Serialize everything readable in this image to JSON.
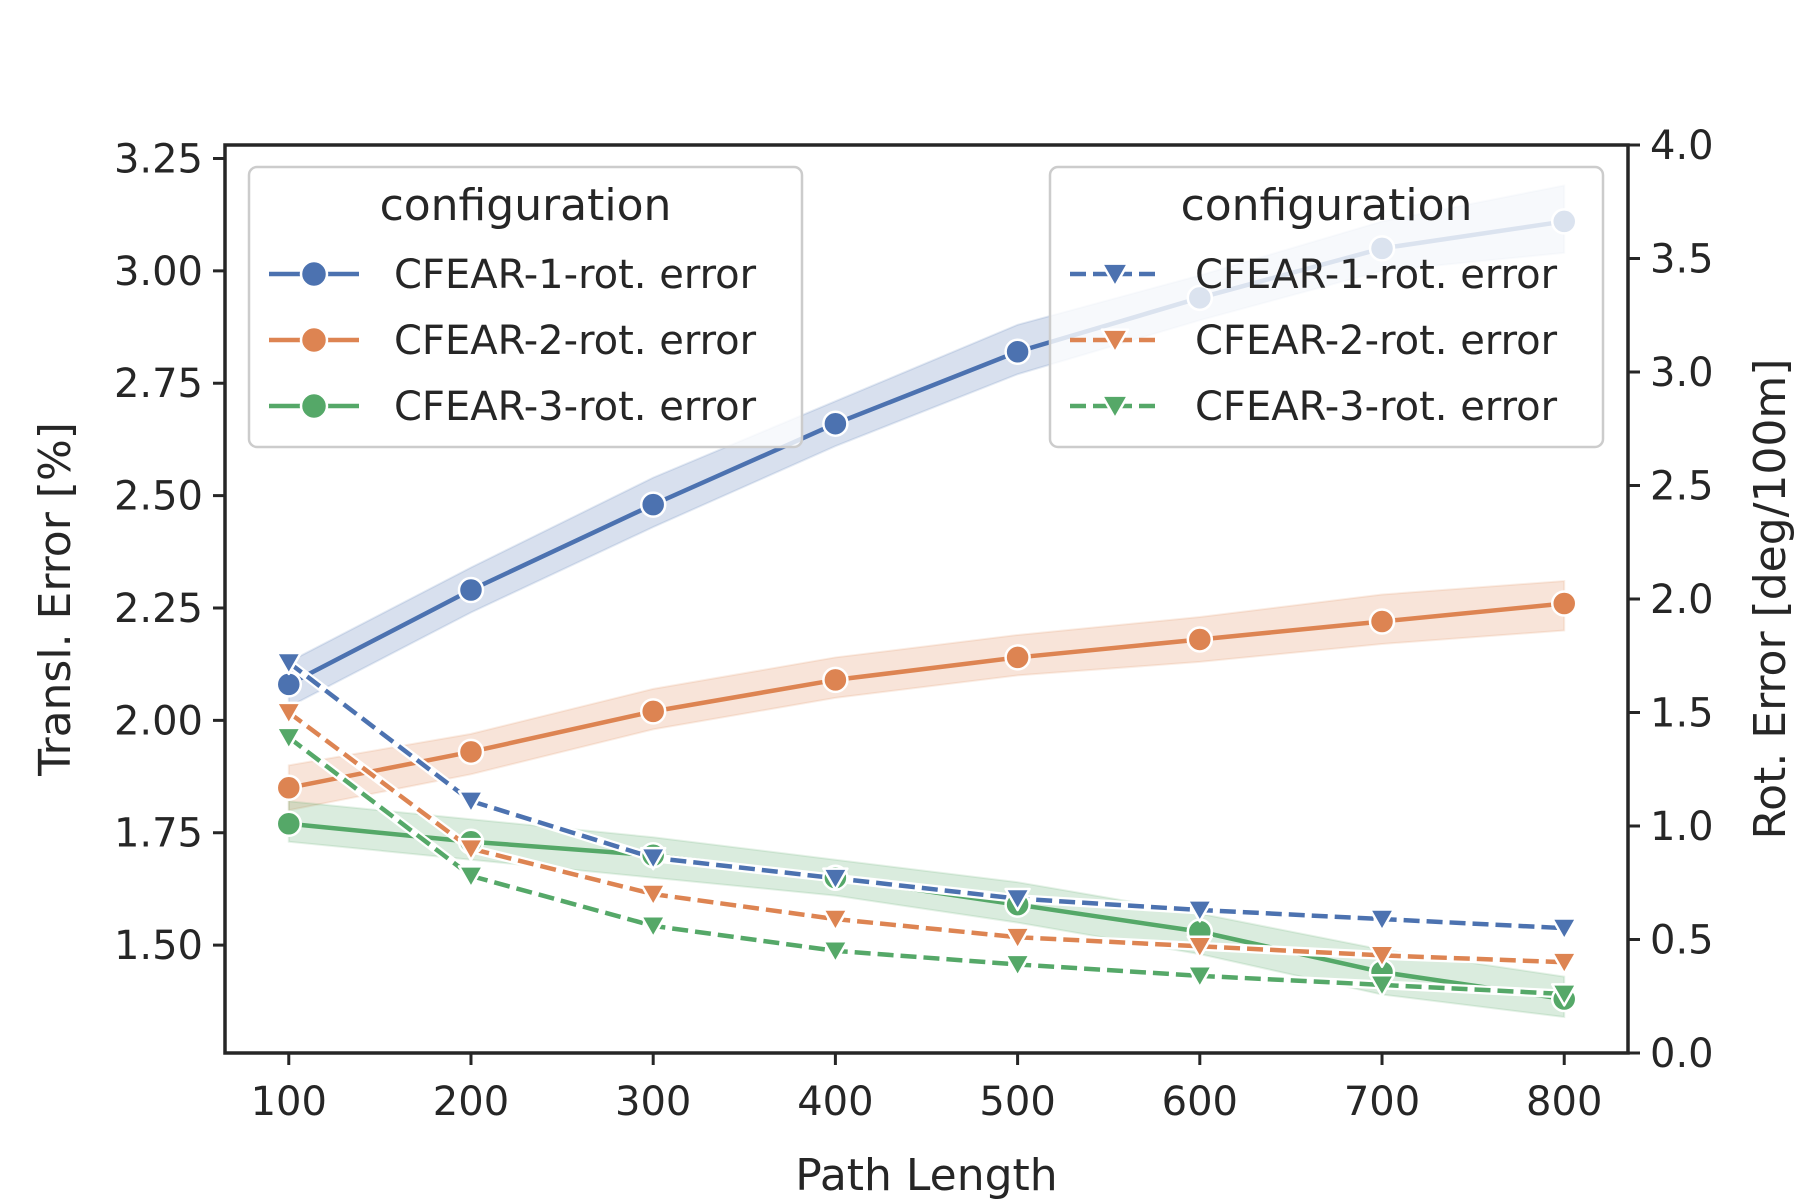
{
  "chart_data": {
    "type": "line",
    "xlabel": "Path Length",
    "ylabel_left": "Transl. Error [%]",
    "ylabel_right": "Rot. Error [deg/100m]",
    "x": [
      100,
      200,
      300,
      400,
      500,
      600,
      700,
      800
    ],
    "x_ticks": [
      "100",
      "200",
      "300",
      "400",
      "500",
      "600",
      "700",
      "800"
    ],
    "xlim": [
      65,
      835
    ],
    "ylim_left": [
      1.26,
      3.28
    ],
    "ylim_right": [
      0.0,
      4.0
    ],
    "y_ticks_left": [
      "1.50",
      "1.75",
      "2.00",
      "2.25",
      "2.50",
      "2.75",
      "3.00",
      "3.25"
    ],
    "y_ticks_right": [
      "0.0",
      "0.5",
      "1.0",
      "1.5",
      "2.0",
      "2.5",
      "3.0",
      "3.5",
      "4.0"
    ],
    "grid": false,
    "transl_series": [
      {
        "name": "CFEAR-1-rot. error",
        "color": "#4c72b0",
        "values": [
          2.08,
          2.29,
          2.48,
          2.66,
          2.82,
          2.94,
          3.05,
          3.11
        ],
        "lower": [
          2.03,
          2.24,
          2.43,
          2.61,
          2.77,
          2.89,
          3.0,
          3.04
        ],
        "upper": [
          2.13,
          2.34,
          2.54,
          2.71,
          2.88,
          2.99,
          3.11,
          3.19
        ]
      },
      {
        "name": "CFEAR-2-rot. error",
        "color": "#dd8452",
        "values": [
          1.85,
          1.93,
          2.02,
          2.09,
          2.14,
          2.18,
          2.22,
          2.26
        ],
        "lower": [
          1.8,
          1.88,
          1.98,
          2.05,
          2.1,
          2.13,
          2.17,
          2.2
        ],
        "upper": [
          1.9,
          1.97,
          2.07,
          2.14,
          2.19,
          2.23,
          2.28,
          2.31
        ]
      },
      {
        "name": "CFEAR-3-rot. error",
        "color": "#55a868",
        "values": [
          1.77,
          1.73,
          1.7,
          1.65,
          1.59,
          1.53,
          1.44,
          1.38
        ],
        "lower": [
          1.73,
          1.69,
          1.65,
          1.61,
          1.55,
          1.48,
          1.39,
          1.34
        ],
        "upper": [
          1.82,
          1.78,
          1.74,
          1.69,
          1.64,
          1.57,
          1.49,
          1.43
        ]
      }
    ],
    "rot_series": [
      {
        "name": "CFEAR-1-rot. error",
        "color": "#4c72b0",
        "values": [
          1.72,
          1.11,
          0.86,
          0.77,
          0.68,
          0.63,
          0.59,
          0.55
        ]
      },
      {
        "name": "CFEAR-2-rot. error",
        "color": "#dd8452",
        "values": [
          1.5,
          0.9,
          0.7,
          0.59,
          0.51,
          0.47,
          0.43,
          0.4
        ]
      },
      {
        "name": "CFEAR-3-rot. error",
        "color": "#55a868",
        "values": [
          1.39,
          0.78,
          0.56,
          0.45,
          0.39,
          0.34,
          0.3,
          0.26
        ]
      }
    ],
    "legends": [
      {
        "title": "configuration",
        "position": "top-left",
        "style": "solid-circle",
        "entries": [
          "CFEAR-1-rot. error",
          "CFEAR-2-rot. error",
          "CFEAR-3-rot. error"
        ]
      },
      {
        "title": "configuration",
        "position": "top-right",
        "style": "dashed-triangle",
        "entries": [
          "CFEAR-1-rot. error",
          "CFEAR-2-rot. error",
          "CFEAR-3-rot. error"
        ]
      }
    ]
  }
}
